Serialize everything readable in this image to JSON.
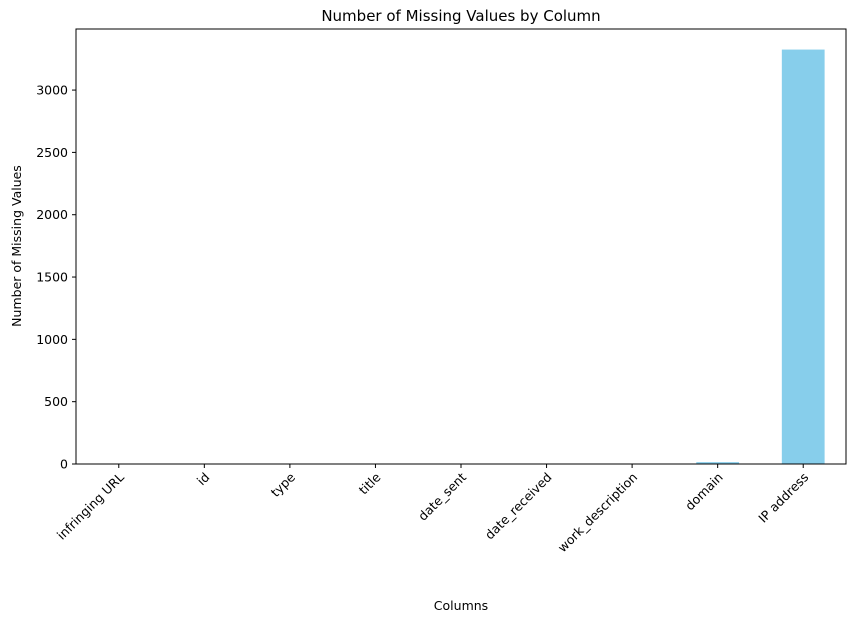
{
  "chart_data": {
    "type": "bar",
    "title": "Number of Missing Values by Column",
    "xlabel": "Columns",
    "ylabel": "Number of Missing Values",
    "categories": [
      "infringing URL",
      "id",
      "type",
      "title",
      "date_sent",
      "date_received",
      "work_description",
      "domain",
      "IP address"
    ],
    "values": [
      0,
      0,
      0,
      0,
      0,
      0,
      0,
      15,
      3325
    ],
    "ylim": [
      0,
      3490
    ],
    "yticks": [
      0,
      500,
      1000,
      1500,
      2000,
      2500,
      3000
    ],
    "bar_color": "#87ceeb",
    "grid": false,
    "x_tick_rotation": 45
  }
}
